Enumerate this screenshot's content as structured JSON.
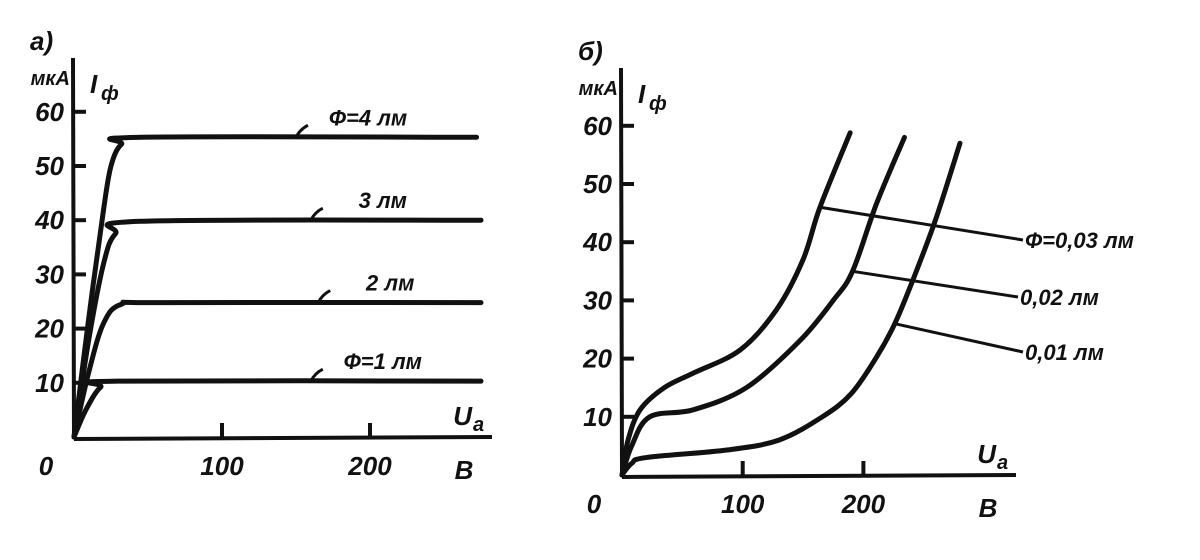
{
  "chart_data": [
    {
      "type": "line",
      "panel_label": "а)",
      "ylabel": "Iф",
      "ylabel_main": "I",
      "ylabel_sub": "ф",
      "yunit": "мкА",
      "xlabel_main": "U",
      "xlabel_sub": "а",
      "xunit": "В",
      "origin_label": "0",
      "xlim": [
        0,
        280
      ],
      "ylim": [
        0,
        65
      ],
      "xticks": [
        100,
        200
      ],
      "xtick_labels": [
        "100",
        "200"
      ],
      "yticks": [
        10,
        20,
        30,
        40,
        50,
        60
      ],
      "ytick_labels": [
        "10",
        "20",
        "30",
        "40",
        "50",
        "60"
      ],
      "grid": false,
      "series": [
        {
          "name": "Ф=4 лм",
          "points": [
            [
              0,
              0
            ],
            [
              10,
              22
            ],
            [
              20,
              42
            ],
            [
              25,
              50
            ],
            [
              32,
              54
            ],
            [
              45,
              55.3
            ],
            [
              272,
              55.3
            ]
          ],
          "label_at": [
            150,
            55.3
          ]
        },
        {
          "name": "3 лм",
          "points": [
            [
              0,
              0
            ],
            [
              10,
              18
            ],
            [
              20,
              32
            ],
            [
              28,
              37.5
            ],
            [
              45,
              39.8
            ],
            [
              275,
              40
            ]
          ],
          "label_at": [
            160,
            40
          ]
        },
        {
          "name": "2 лм",
          "points": [
            [
              0,
              0
            ],
            [
              10,
              12
            ],
            [
              20,
              21
            ],
            [
              32,
              24.5
            ],
            [
              60,
              24.8
            ],
            [
              275,
              24.8
            ]
          ],
          "label_at": [
            165,
            24.8
          ]
        },
        {
          "name": "Ф=1 лм",
          "points": [
            [
              0,
              0
            ],
            [
              8,
              5
            ],
            [
              18,
              9.2
            ],
            [
              30,
              10.3
            ],
            [
              275,
              10.3
            ]
          ],
          "label_at": [
            160,
            10.3
          ]
        }
      ]
    },
    {
      "type": "line",
      "panel_label": "б)",
      "ylabel": "Iф",
      "ylabel_main": "I",
      "ylabel_sub": "ф",
      "yunit": "мкА",
      "xlabel_main": "U",
      "xlabel_sub": "а",
      "xunit": "В",
      "origin_label": "0",
      "xlim": [
        0,
        295
      ],
      "ylim": [
        0,
        65
      ],
      "xticks": [
        100,
        200
      ],
      "xtick_labels": [
        "100",
        "200"
      ],
      "yticks": [
        10,
        20,
        30,
        40,
        50,
        60
      ],
      "ytick_labels": [
        "10",
        "20",
        "30",
        "40",
        "50",
        "60"
      ],
      "grid": false,
      "series": [
        {
          "name": "Ф=0,03 лм",
          "points": [
            [
              0,
              0
            ],
            [
              5,
              6
            ],
            [
              15,
              11.2
            ],
            [
              35,
              15
            ],
            [
              59,
              17.5
            ],
            [
              98,
              21.5
            ],
            [
              128,
              28.4
            ],
            [
              150,
              37
            ],
            [
              164,
              46
            ],
            [
              189,
              58.8
            ]
          ],
          "label_at": [
            164,
            46
          ]
        },
        {
          "name": "0,02 лм",
          "points": [
            [
              0,
              0
            ],
            [
              8,
              5
            ],
            [
              23,
              10
            ],
            [
              59,
              11.2
            ],
            [
              103,
              15
            ],
            [
              147,
              23
            ],
            [
              175,
              30
            ],
            [
              191,
              35
            ],
            [
              211,
              46.7
            ],
            [
              234,
              58
            ]
          ],
          "label_at": [
            191,
            35
          ]
        },
        {
          "name": "0,01 лм",
          "points": [
            [
              0,
              0
            ],
            [
              8,
              2
            ],
            [
              20,
              3
            ],
            [
              87,
              4.3
            ],
            [
              130,
              6
            ],
            [
              166,
              10
            ],
            [
              190,
              14
            ],
            [
              211,
              20.3
            ],
            [
              226,
              26
            ],
            [
              241,
              33.5
            ],
            [
              260,
              44
            ],
            [
              280,
              57
            ]
          ],
          "label_at": [
            226,
            26
          ]
        }
      ]
    }
  ]
}
